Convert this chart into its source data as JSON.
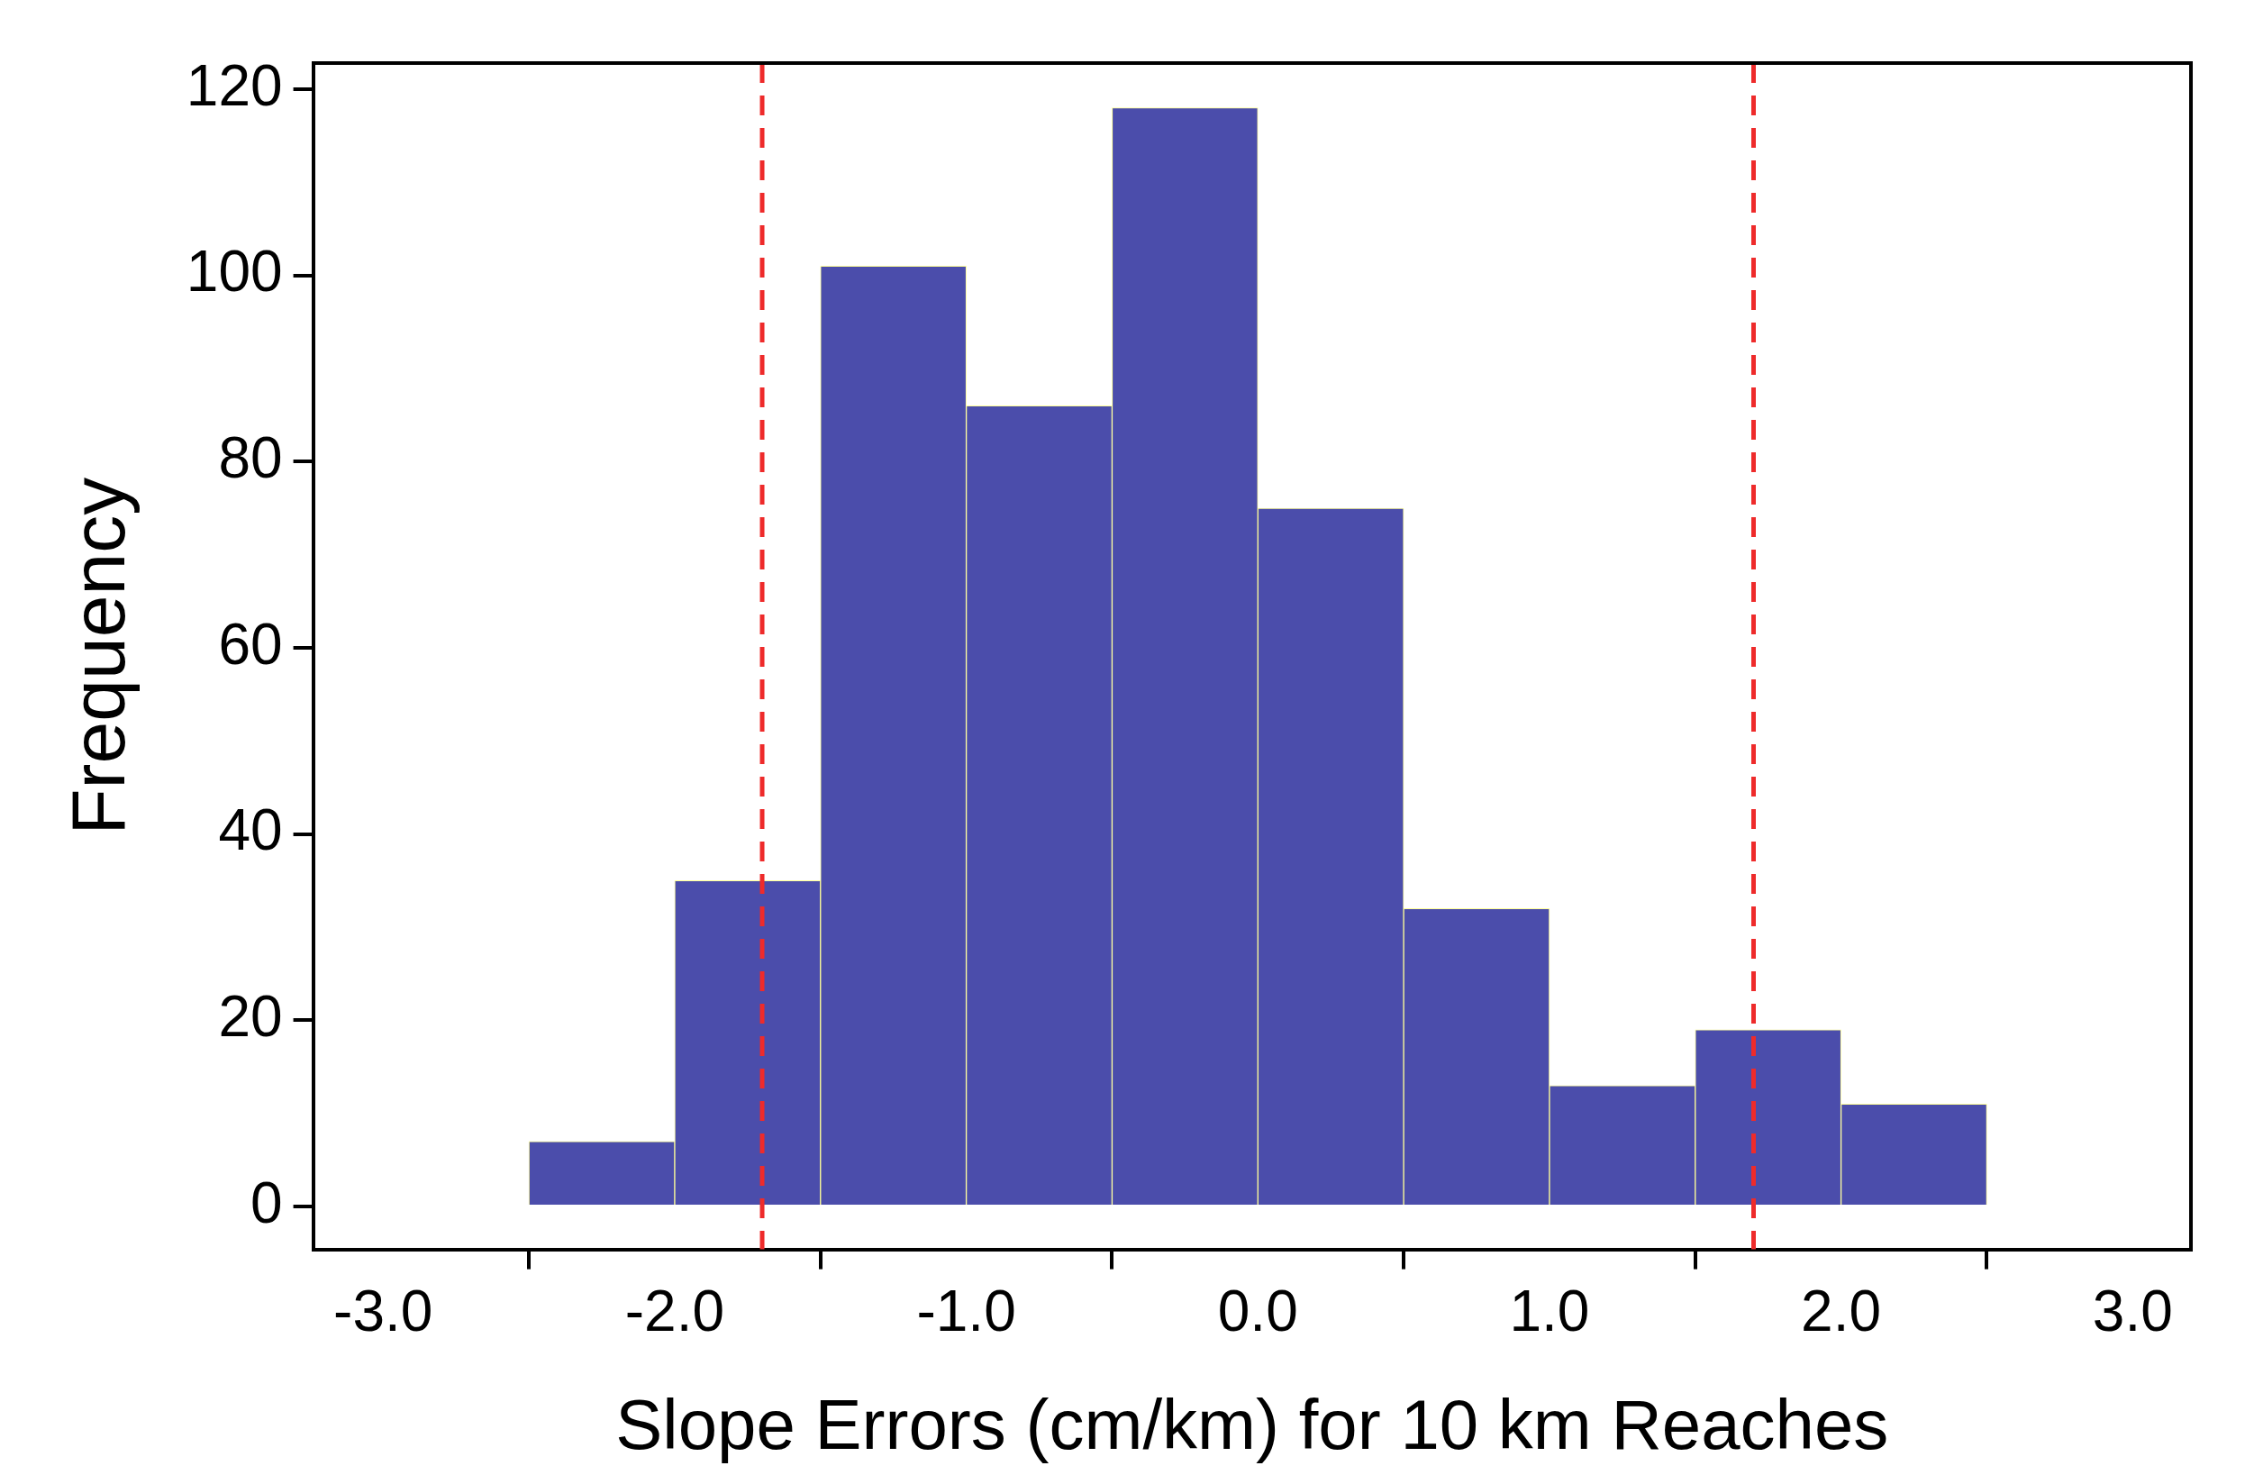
{
  "chart_data": {
    "type": "histogram",
    "xlabel": "Slope Errors (cm/km) for 10 km Reaches",
    "ylabel": "Frequency",
    "bins": [
      -2.5,
      -2,
      -1.5,
      -1,
      -0.5,
      0,
      0.5,
      1,
      1.5,
      2,
      2.5
    ],
    "values": [
      7,
      35,
      101,
      86,
      118,
      75,
      32,
      13,
      19,
      11
    ],
    "color": "#4b4dab",
    "xlim": [
      -3.24,
      3.2
    ],
    "ylim": [
      -4.6,
      122.8
    ],
    "xticks": [
      {
        "value": -3,
        "label": "-3.0"
      },
      {
        "value": -2,
        "label": "-2.0"
      },
      {
        "value": -1,
        "label": "-1.0"
      },
      {
        "value": 0,
        "label": "0.0"
      },
      {
        "value": 1,
        "label": "1.0"
      },
      {
        "value": 2,
        "label": "2.0"
      },
      {
        "value": 3,
        "label": "3.0"
      }
    ],
    "yticks": [
      0,
      20,
      40,
      60,
      80,
      100,
      120
    ],
    "ref_lines": [
      {
        "axis": "x",
        "value": -1.7,
        "color": "#ee2b2b",
        "line_style": "dashed"
      },
      {
        "axis": "x",
        "value": 1.7,
        "color": "#ee2b2b",
        "line_style": "dashed"
      }
    ],
    "grid": false,
    "legend": false
  }
}
